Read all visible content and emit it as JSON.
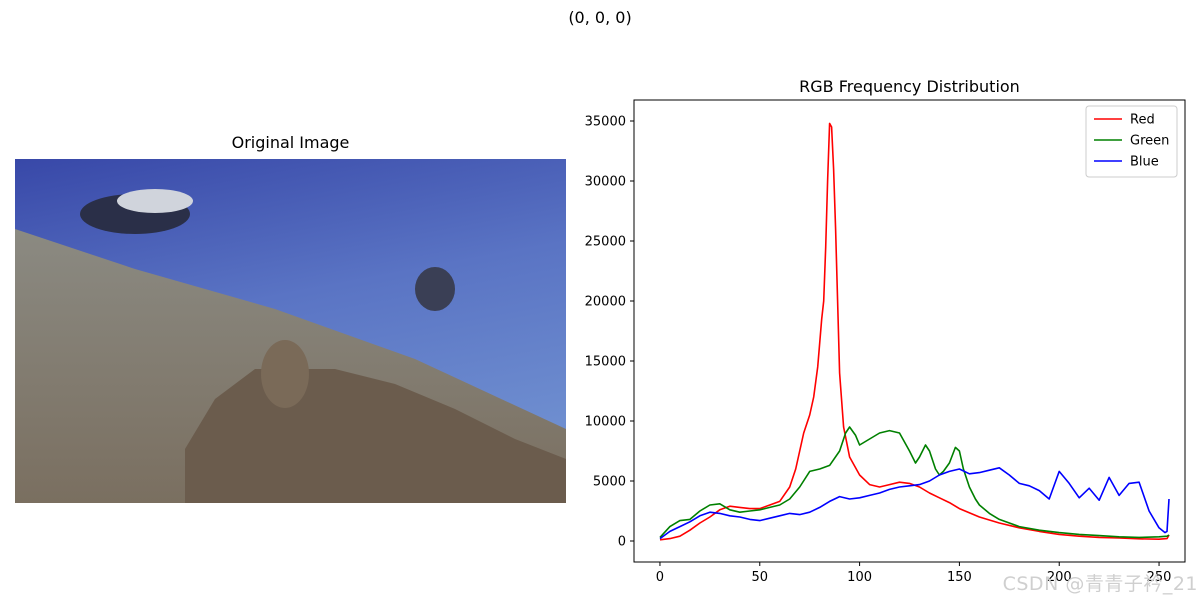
{
  "figure": {
    "suptitle": "(0, 0, 0)",
    "image_title": "Original Image",
    "watermark": "CSDN @青青子衿_21"
  },
  "chart_data": {
    "type": "line",
    "title": "RGB Frequency Distribution",
    "xlabel": "",
    "ylabel": "",
    "xlim": [
      -13,
      263
    ],
    "ylim": [
      -1750,
      36750
    ],
    "xticks": [
      0,
      50,
      100,
      150,
      200,
      250
    ],
    "yticks": [
      0,
      5000,
      10000,
      15000,
      20000,
      25000,
      30000,
      35000
    ],
    "grid": false,
    "legend": "top-right",
    "series": [
      {
        "name": "Red",
        "color": "#ff0000",
        "x": [
          0,
          5,
          10,
          15,
          20,
          25,
          30,
          35,
          40,
          45,
          50,
          55,
          60,
          65,
          68,
          70,
          72,
          75,
          77,
          79,
          80,
          81,
          82,
          83,
          84,
          85,
          86,
          87,
          88,
          89,
          90,
          92,
          95,
          100,
          105,
          110,
          115,
          120,
          125,
          130,
          135,
          140,
          145,
          150,
          160,
          170,
          180,
          190,
          200,
          210,
          220,
          230,
          240,
          250,
          254,
          255
        ],
        "values": [
          100,
          200,
          400,
          900,
          1500,
          2000,
          2600,
          2900,
          2800,
          2700,
          2700,
          3000,
          3300,
          4500,
          6000,
          7500,
          9000,
          10500,
          12000,
          14500,
          16500,
          18500,
          20000,
          24500,
          30000,
          34800,
          34500,
          31000,
          26000,
          20000,
          14000,
          9500,
          7000,
          5500,
          4700,
          4500,
          4700,
          4900,
          4800,
          4500,
          4000,
          3600,
          3200,
          2700,
          2000,
          1500,
          1100,
          800,
          550,
          400,
          300,
          250,
          180,
          150,
          200,
          500
        ]
      },
      {
        "name": "Green",
        "color": "#008000",
        "x": [
          0,
          5,
          10,
          15,
          20,
          25,
          30,
          35,
          40,
          45,
          50,
          55,
          60,
          65,
          70,
          75,
          80,
          85,
          90,
          93,
          95,
          98,
          100,
          105,
          110,
          115,
          120,
          125,
          128,
          130,
          133,
          135,
          138,
          140,
          142,
          145,
          148,
          150,
          152,
          155,
          158,
          160,
          165,
          170,
          180,
          190,
          200,
          210,
          220,
          230,
          240,
          250,
          254,
          255
        ],
        "values": [
          300,
          1200,
          1700,
          1800,
          2500,
          3000,
          3100,
          2600,
          2400,
          2500,
          2600,
          2800,
          3000,
          3500,
          4500,
          5800,
          6000,
          6300,
          7500,
          9000,
          9500,
          8800,
          8000,
          8500,
          9000,
          9200,
          9000,
          7500,
          6500,
          7000,
          8000,
          7500,
          6000,
          5500,
          5800,
          6500,
          7800,
          7500,
          6000,
          4500,
          3500,
          3000,
          2300,
          1800,
          1200,
          900,
          700,
          550,
          450,
          350,
          300,
          350,
          400,
          500
        ]
      },
      {
        "name": "Blue",
        "color": "#0000ff",
        "x": [
          0,
          5,
          10,
          15,
          20,
          25,
          30,
          35,
          40,
          45,
          50,
          55,
          60,
          65,
          70,
          75,
          80,
          85,
          90,
          95,
          100,
          105,
          110,
          115,
          120,
          125,
          130,
          135,
          140,
          145,
          150,
          155,
          160,
          165,
          170,
          175,
          180,
          185,
          190,
          195,
          200,
          205,
          210,
          215,
          220,
          225,
          230,
          235,
          240,
          245,
          250,
          253,
          254,
          255
        ],
        "values": [
          200,
          800,
          1200,
          1600,
          2100,
          2400,
          2300,
          2100,
          2000,
          1800,
          1700,
          1900,
          2100,
          2300,
          2200,
          2400,
          2800,
          3300,
          3700,
          3500,
          3600,
          3800,
          4000,
          4300,
          4500,
          4600,
          4700,
          5000,
          5500,
          5800,
          6000,
          5600,
          5700,
          5900,
          6100,
          5500,
          4800,
          4600,
          4200,
          3500,
          5800,
          4800,
          3600,
          4400,
          3400,
          5300,
          3800,
          4800,
          4900,
          2500,
          1100,
          700,
          800,
          3500
        ]
      }
    ]
  }
}
